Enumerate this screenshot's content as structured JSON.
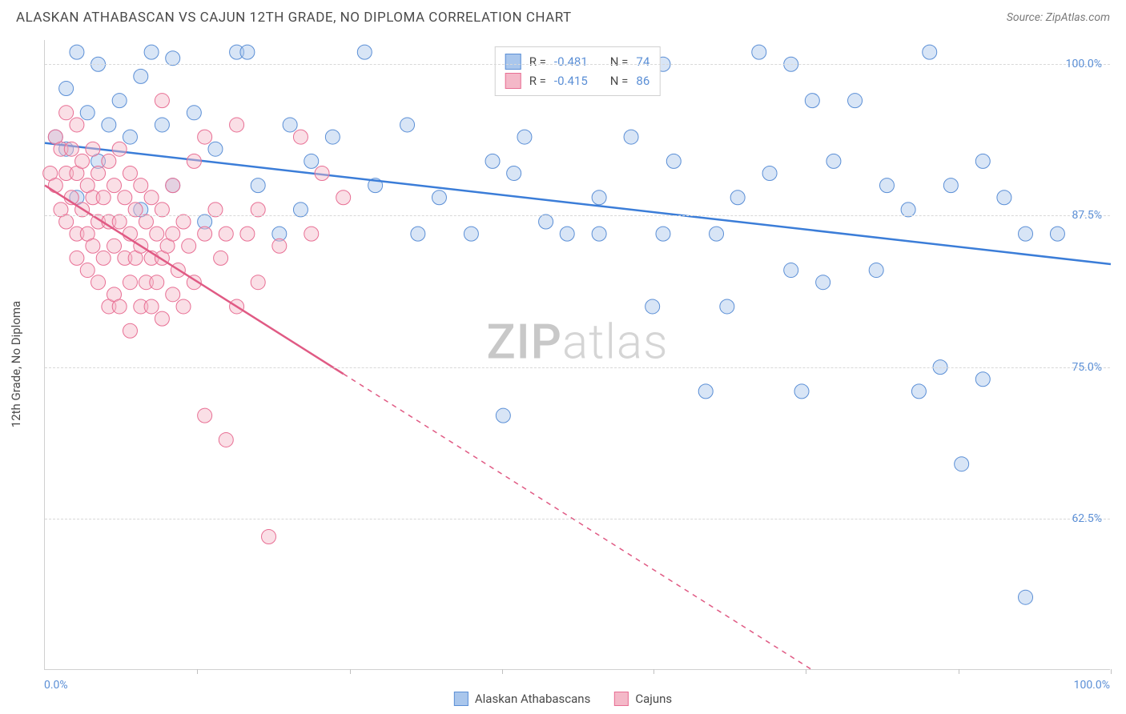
{
  "title": "ALASKAN ATHABASCAN VS CAJUN 12TH GRADE, NO DIPLOMA CORRELATION CHART",
  "source_label": "Source: ZipAtlas.com",
  "ylabel": "12th Grade, No Diploma",
  "watermark": {
    "bold": "ZIP",
    "rest": "atlas"
  },
  "chart": {
    "type": "scatter",
    "background_color": "#ffffff",
    "grid_color": "#d8d8d8",
    "grid_dash": "4,4",
    "axis_color": "#d0d0d0",
    "tick_label_color": "#5b8fd6",
    "tick_fontsize": 14,
    "title_fontsize": 17,
    "title_color": "#4a4a4a",
    "ylabel_fontsize": 15,
    "xlim": [
      0,
      100
    ],
    "ylim": [
      50,
      102
    ],
    "yticks": [
      62.5,
      75.0,
      87.5,
      100.0
    ],
    "ytick_labels": [
      "62.5%",
      "75.0%",
      "87.5%",
      "100.0%"
    ],
    "xticks": [
      14.3,
      28.6,
      42.9,
      57.1,
      71.4,
      85.7,
      100.0
    ],
    "x_axis_start_label": "0.0%",
    "x_axis_end_label": "100.0%",
    "marker_radius": 9,
    "marker_fill_opacity": 0.45,
    "marker_stroke_width": 1,
    "line_width": 2.5,
    "dash_pattern": "6,6"
  },
  "series": [
    {
      "name": "Alaskan Athabascans",
      "color_fill": "#a9c6ec",
      "color_stroke": "#5b8fd6",
      "line_color": "#3b7dd8",
      "R": "-0.481",
      "N": "74",
      "trend": {
        "x1": 0,
        "y1": 93.5,
        "x2": 100,
        "y2": 83.5,
        "solid_until_x": 100
      },
      "points": [
        [
          1,
          94
        ],
        [
          2,
          98
        ],
        [
          2,
          93
        ],
        [
          3,
          101
        ],
        [
          3,
          89
        ],
        [
          4,
          96
        ],
        [
          5,
          100
        ],
        [
          5,
          92
        ],
        [
          6,
          95
        ],
        [
          7,
          97
        ],
        [
          8,
          94
        ],
        [
          9,
          99
        ],
        [
          9,
          88
        ],
        [
          10,
          101
        ],
        [
          11,
          95
        ],
        [
          12,
          90
        ],
        [
          12,
          100.5
        ],
        [
          14,
          96
        ],
        [
          15,
          87
        ],
        [
          16,
          93
        ],
        [
          18,
          101
        ],
        [
          19,
          101
        ],
        [
          20,
          90
        ],
        [
          22,
          86
        ],
        [
          23,
          95
        ],
        [
          24,
          88
        ],
        [
          25,
          92
        ],
        [
          27,
          94
        ],
        [
          30,
          101
        ],
        [
          31,
          90
        ],
        [
          34,
          95
        ],
        [
          35,
          86
        ],
        [
          37,
          89
        ],
        [
          40,
          86
        ],
        [
          42,
          92
        ],
        [
          43,
          71
        ],
        [
          44,
          91
        ],
        [
          45,
          94
        ],
        [
          47,
          87
        ],
        [
          49,
          86
        ],
        [
          52,
          89
        ],
        [
          52,
          86
        ],
        [
          55,
          94
        ],
        [
          57,
          80
        ],
        [
          58,
          100
        ],
        [
          58,
          86
        ],
        [
          59,
          92
        ],
        [
          62,
          73
        ],
        [
          63,
          86
        ],
        [
          64,
          80
        ],
        [
          65,
          89
        ],
        [
          67,
          101
        ],
        [
          68,
          91
        ],
        [
          70,
          100
        ],
        [
          70,
          83
        ],
        [
          71,
          73
        ],
        [
          72,
          97
        ],
        [
          73,
          82
        ],
        [
          74,
          92
        ],
        [
          76,
          97
        ],
        [
          78,
          83
        ],
        [
          79,
          90
        ],
        [
          81,
          88
        ],
        [
          82,
          73
        ],
        [
          83,
          101
        ],
        [
          84,
          75
        ],
        [
          85,
          90
        ],
        [
          86,
          67
        ],
        [
          88,
          92
        ],
        [
          88,
          74
        ],
        [
          90,
          89
        ],
        [
          92,
          86
        ],
        [
          92,
          56
        ],
        [
          95,
          86
        ]
      ]
    },
    {
      "name": "Cajuns",
      "color_fill": "#f4b8c8",
      "color_stroke": "#e86f94",
      "line_color": "#e05a84",
      "R": "-0.415",
      "N": "86",
      "trend": {
        "x1": 0,
        "y1": 90,
        "x2": 72,
        "y2": 50,
        "solid_until_x": 28
      },
      "points": [
        [
          0.5,
          91
        ],
        [
          1,
          94
        ],
        [
          1,
          90
        ],
        [
          1.5,
          93
        ],
        [
          1.5,
          88
        ],
        [
          2,
          96
        ],
        [
          2,
          91
        ],
        [
          2,
          87
        ],
        [
          2.5,
          93
        ],
        [
          2.5,
          89
        ],
        [
          3,
          95
        ],
        [
          3,
          91
        ],
        [
          3,
          86
        ],
        [
          3,
          84
        ],
        [
          3.5,
          92
        ],
        [
          3.5,
          88
        ],
        [
          4,
          90
        ],
        [
          4,
          86
        ],
        [
          4,
          83
        ],
        [
          4.5,
          93
        ],
        [
          4.5,
          89
        ],
        [
          4.5,
          85
        ],
        [
          5,
          91
        ],
        [
          5,
          87
        ],
        [
          5,
          82
        ],
        [
          5.5,
          89
        ],
        [
          5.5,
          84
        ],
        [
          6,
          92
        ],
        [
          6,
          87
        ],
        [
          6,
          80
        ],
        [
          6.5,
          90
        ],
        [
          6.5,
          85
        ],
        [
          6.5,
          81
        ],
        [
          7,
          93
        ],
        [
          7,
          87
        ],
        [
          7,
          80
        ],
        [
          7.5,
          89
        ],
        [
          7.5,
          84
        ],
        [
          8,
          91
        ],
        [
          8,
          86
        ],
        [
          8,
          82
        ],
        [
          8,
          78
        ],
        [
          8.5,
          88
        ],
        [
          8.5,
          84
        ],
        [
          9,
          90
        ],
        [
          9,
          85
        ],
        [
          9,
          80
        ],
        [
          9.5,
          87
        ],
        [
          9.5,
          82
        ],
        [
          10,
          89
        ],
        [
          10,
          84
        ],
        [
          10,
          80
        ],
        [
          10.5,
          86
        ],
        [
          10.5,
          82
        ],
        [
          11,
          97
        ],
        [
          11,
          88
        ],
        [
          11,
          84
        ],
        [
          11,
          79
        ],
        [
          11.5,
          85
        ],
        [
          12,
          90
        ],
        [
          12,
          86
        ],
        [
          12,
          81
        ],
        [
          12.5,
          83
        ],
        [
          13,
          87
        ],
        [
          13,
          80
        ],
        [
          13.5,
          85
        ],
        [
          14,
          92
        ],
        [
          14,
          82
        ],
        [
          15,
          94
        ],
        [
          15,
          86
        ],
        [
          15,
          71
        ],
        [
          16,
          88
        ],
        [
          16.5,
          84
        ],
        [
          17,
          86
        ],
        [
          17,
          69
        ],
        [
          18,
          95
        ],
        [
          18,
          80
        ],
        [
          19,
          86
        ],
        [
          20,
          88
        ],
        [
          20,
          82
        ],
        [
          21,
          61
        ],
        [
          22,
          85
        ],
        [
          24,
          94
        ],
        [
          25,
          86
        ],
        [
          26,
          91
        ],
        [
          28,
          89
        ]
      ]
    }
  ],
  "legend_bottom": [
    {
      "label": "Alaskan Athabascans",
      "fill": "#a9c6ec",
      "stroke": "#5b8fd6"
    },
    {
      "label": "Cajuns",
      "fill": "#f4b8c8",
      "stroke": "#e86f94"
    }
  ],
  "stats_box": {
    "border_color": "#d0d0d0",
    "rows": [
      {
        "fill": "#a9c6ec",
        "stroke": "#5b8fd6",
        "r_label": "R =",
        "r_val": "-0.481",
        "n_label": "N =",
        "n_val": "74"
      },
      {
        "fill": "#f4b8c8",
        "stroke": "#e86f94",
        "r_label": "R =",
        "r_val": "-0.415",
        "n_label": "N =",
        "n_val": "86"
      }
    ]
  }
}
